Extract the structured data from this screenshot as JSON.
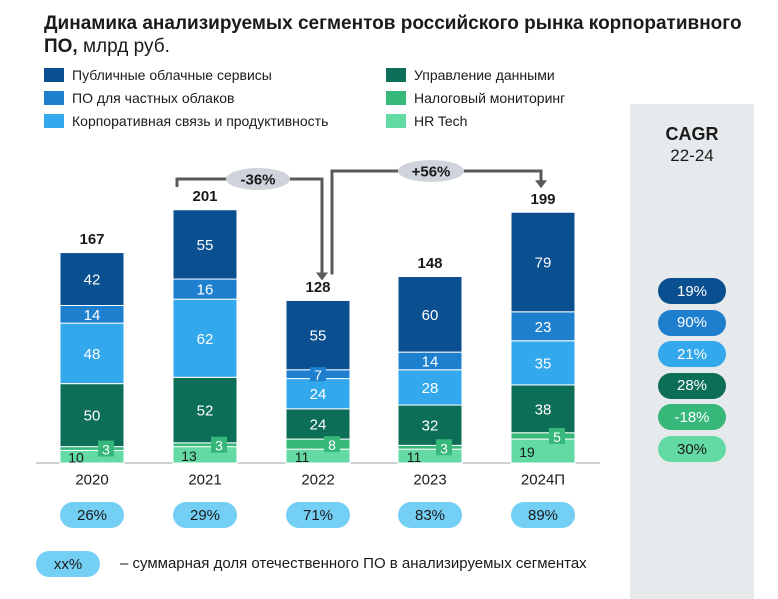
{
  "title": {
    "main": "Динамика анализируемых сегментов российского рынка корпоративного ПО,",
    "unit": " млрд руб."
  },
  "colors": {
    "public_cloud": "#0a4f8f",
    "private_cloud": "#1f7fcf",
    "corp_comm": "#33a8ec",
    "data_mgmt": "#0d6e57",
    "tax_monitoring": "#35b87a",
    "hr_tech": "#63d9a4",
    "share_pill": "#74cff4",
    "cagr_panel": "#e6eaed",
    "change_pill": "#cfd3dc"
  },
  "legend": [
    {
      "label": "Публичные облачные сервисы",
      "color": "#0a4f8f"
    },
    {
      "label": "ПО для частных облаков",
      "color": "#1f7fcf"
    },
    {
      "label": "Корпоративная связь и продуктивность",
      "color": "#33a8ec"
    },
    {
      "label": "Управление данными",
      "color": "#0d6e57"
    },
    {
      "label": "Налоговый мониторинг",
      "color": "#35b87a"
    },
    {
      "label": "HR Tech",
      "color": "#63d9a4"
    }
  ],
  "chart_data": {
    "type": "bar",
    "stacked": true,
    "title": "Динамика анализируемых сегментов российского рынка корпоративного ПО, млрд руб.",
    "categories": [
      "2020",
      "2021",
      "2022",
      "2023",
      "2024П"
    ],
    "series": [
      {
        "name": "HR Tech",
        "values": [
          10,
          13,
          11,
          11,
          19
        ]
      },
      {
        "name": "Налоговый мониторинг",
        "values": [
          3,
          3,
          8,
          3,
          5
        ]
      },
      {
        "name": "Управление данными",
        "values": [
          50,
          52,
          24,
          32,
          38
        ]
      },
      {
        "name": "Корпоративная связь и продуктивность",
        "values": [
          48,
          62,
          24,
          28,
          35
        ]
      },
      {
        "name": "ПО для частных облаков",
        "values": [
          14,
          16,
          7,
          14,
          23
        ]
      },
      {
        "name": "Публичные облачные сервисы",
        "values": [
          42,
          55,
          55,
          60,
          79
        ]
      }
    ],
    "totals": [
      167,
      201,
      128,
      148,
      199
    ],
    "annotations": [
      {
        "label": "-36%",
        "from": "2021",
        "to": "2022"
      },
      {
        "label": "+56%",
        "from": "2022",
        "to": "2024П"
      }
    ],
    "domestic_share": [
      "26%",
      "29%",
      "71%",
      "83%",
      "89%"
    ],
    "xlabel": "",
    "ylabel": "",
    "ylim": [
      0,
      210
    ]
  },
  "cagr": {
    "title": "CAGR",
    "period": "22-24",
    "values": [
      {
        "segment": "Публичные облачные сервисы",
        "value": "19%"
      },
      {
        "segment": "ПО для частных облаков",
        "value": "90%"
      },
      {
        "segment": "Корпоративная связь и продуктивность",
        "value": "21%"
      },
      {
        "segment": "Управление данными",
        "value": "28%"
      },
      {
        "segment": "Налоговый мониторинг",
        "value": "-18%"
      },
      {
        "segment": "HR Tech",
        "value": "30%"
      }
    ]
  },
  "footnote": {
    "pill": "xx%",
    "text": "– суммарная доля отечественного ПО в анализируемых сегментах"
  }
}
